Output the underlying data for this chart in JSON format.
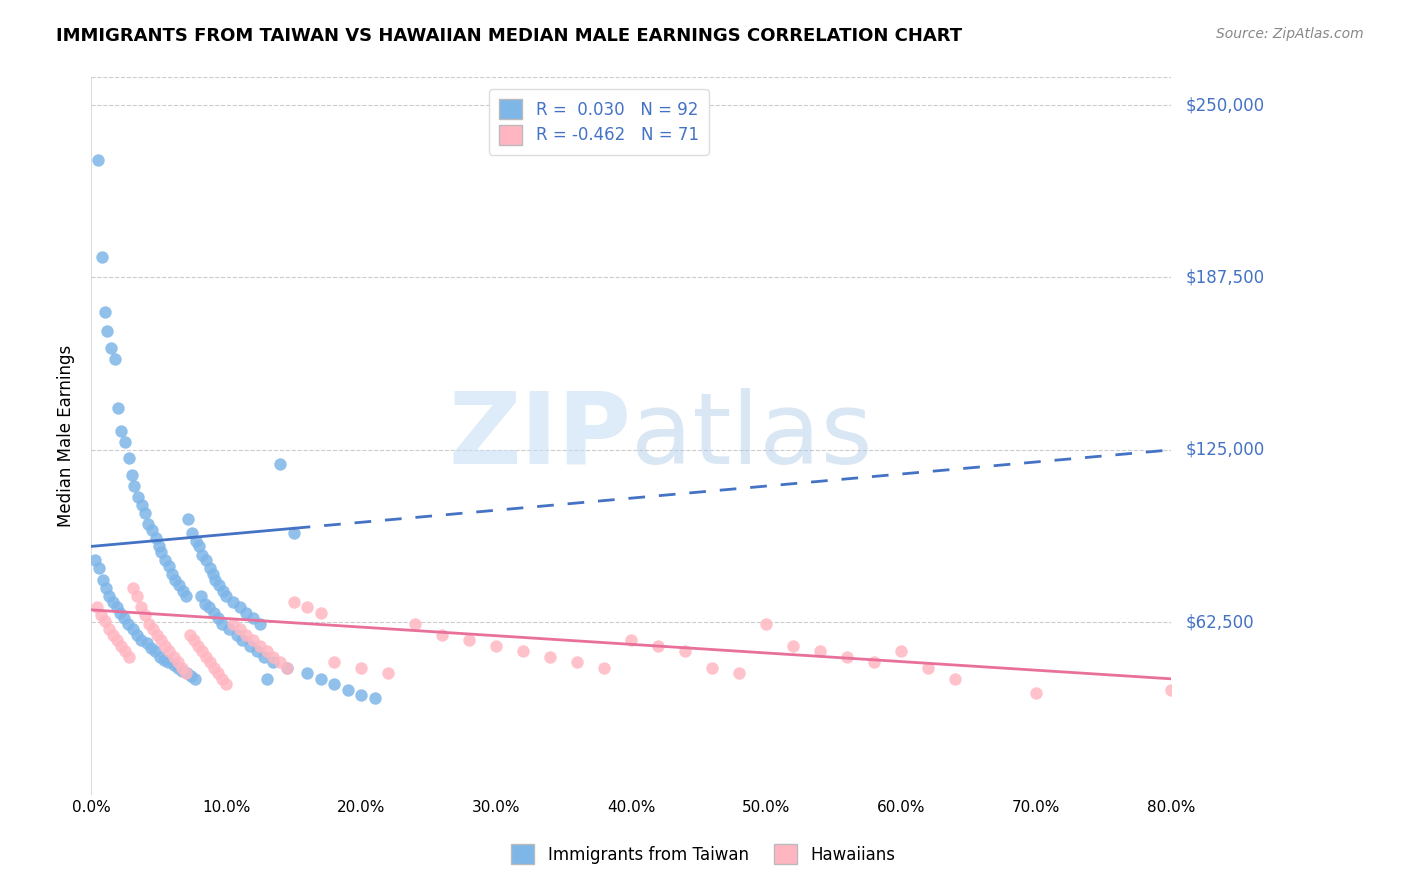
{
  "title": "IMMIGRANTS FROM TAIWAN VS HAWAIIAN MEDIAN MALE EARNINGS CORRELATION CHART",
  "source": "Source: ZipAtlas.com",
  "ylabel": "Median Male Earnings",
  "xlabel_ticks": [
    "0.0%",
    "10.0%",
    "20.0%",
    "30.0%",
    "40.0%",
    "50.0%",
    "60.0%",
    "70.0%",
    "80.0%"
  ],
  "xlabel_vals": [
    0,
    10,
    20,
    30,
    40,
    50,
    60,
    70,
    80
  ],
  "ytick_labels": [
    "$62,500",
    "$125,000",
    "$187,500",
    "$250,000"
  ],
  "ytick_vals": [
    62500,
    125000,
    187500,
    250000
  ],
  "ymax": 260000,
  "ymin": 0,
  "xmax": 80,
  "xmin": 0,
  "blue_color": "#7EB6E8",
  "blue_dark": "#4472C4",
  "pink_color": "#FFB6C1",
  "pink_dark": "#E8709A",
  "r_blue": 0.03,
  "n_blue": 92,
  "r_pink": -0.462,
  "n_pink": 71,
  "watermark_zip": "ZIP",
  "watermark_atlas": "atlas",
  "legend_blue_label": "Immigrants from Taiwan",
  "legend_pink_label": "Hawaiians",
  "blue_scatter_x": [
    0.5,
    0.8,
    1.0,
    1.2,
    1.5,
    1.8,
    2.0,
    2.2,
    2.5,
    2.8,
    3.0,
    3.2,
    3.5,
    3.8,
    4.0,
    4.2,
    4.5,
    4.8,
    5.0,
    5.2,
    5.5,
    5.8,
    6.0,
    6.2,
    6.5,
    6.8,
    7.0,
    7.2,
    7.5,
    7.8,
    8.0,
    8.2,
    8.5,
    8.8,
    9.0,
    9.2,
    9.5,
    9.8,
    10.0,
    10.5,
    11.0,
    11.5,
    12.0,
    12.5,
    13.0,
    14.0,
    15.0,
    0.3,
    0.6,
    0.9,
    1.1,
    1.3,
    1.6,
    1.9,
    2.1,
    2.4,
    2.7,
    3.1,
    3.4,
    3.7,
    4.1,
    4.4,
    4.7,
    5.1,
    5.4,
    5.7,
    6.1,
    6.4,
    6.7,
    7.1,
    7.4,
    7.7,
    8.1,
    8.4,
    8.7,
    9.1,
    9.4,
    9.7,
    10.2,
    10.8,
    11.2,
    11.8,
    12.3,
    12.8,
    13.5,
    14.5,
    16.0,
    17.0,
    18.0,
    19.0,
    20.0,
    21.0
  ],
  "blue_scatter_y": [
    230000,
    195000,
    175000,
    168000,
    162000,
    158000,
    140000,
    132000,
    128000,
    122000,
    116000,
    112000,
    108000,
    105000,
    102000,
    98000,
    96000,
    93000,
    90000,
    88000,
    85000,
    83000,
    80000,
    78000,
    76000,
    74000,
    72000,
    100000,
    95000,
    92000,
    90000,
    87000,
    85000,
    82000,
    80000,
    78000,
    76000,
    74000,
    72000,
    70000,
    68000,
    66000,
    64000,
    62000,
    42000,
    120000,
    95000,
    85000,
    82000,
    78000,
    75000,
    72000,
    70000,
    68000,
    66000,
    64000,
    62000,
    60000,
    58000,
    56000,
    55000,
    53000,
    52000,
    50000,
    49000,
    48000,
    47000,
    46000,
    45000,
    44000,
    43000,
    42000,
    72000,
    69000,
    68000,
    66000,
    64000,
    62000,
    60000,
    58000,
    56000,
    54000,
    52000,
    50000,
    48000,
    46000,
    44000,
    42000,
    40000,
    38000,
    36000,
    35000
  ],
  "pink_scatter_x": [
    0.4,
    0.7,
    1.0,
    1.3,
    1.6,
    1.9,
    2.2,
    2.5,
    2.8,
    3.1,
    3.4,
    3.7,
    4.0,
    4.3,
    4.6,
    4.9,
    5.2,
    5.5,
    5.8,
    6.1,
    6.4,
    6.7,
    7.0,
    7.3,
    7.6,
    7.9,
    8.2,
    8.5,
    8.8,
    9.1,
    9.4,
    9.7,
    10.0,
    10.5,
    11.0,
    11.5,
    12.0,
    12.5,
    13.0,
    13.5,
    14.0,
    14.5,
    15.0,
    16.0,
    17.0,
    18.0,
    20.0,
    22.0,
    24.0,
    26.0,
    28.0,
    30.0,
    32.0,
    34.0,
    36.0,
    38.0,
    40.0,
    42.0,
    44.0,
    46.0,
    48.0,
    50.0,
    52.0,
    54.0,
    56.0,
    58.0,
    60.0,
    62.0,
    64.0,
    70.0,
    80.0
  ],
  "pink_scatter_y": [
    68000,
    65000,
    63000,
    60000,
    58000,
    56000,
    54000,
    52000,
    50000,
    75000,
    72000,
    68000,
    65000,
    62000,
    60000,
    58000,
    56000,
    54000,
    52000,
    50000,
    48000,
    46000,
    44000,
    58000,
    56000,
    54000,
    52000,
    50000,
    48000,
    46000,
    44000,
    42000,
    40000,
    62000,
    60000,
    58000,
    56000,
    54000,
    52000,
    50000,
    48000,
    46000,
    70000,
    68000,
    66000,
    48000,
    46000,
    44000,
    62000,
    58000,
    56000,
    54000,
    52000,
    50000,
    48000,
    46000,
    56000,
    54000,
    52000,
    46000,
    44000,
    62000,
    54000,
    52000,
    50000,
    48000,
    52000,
    46000,
    42000,
    37000,
    38000
  ]
}
